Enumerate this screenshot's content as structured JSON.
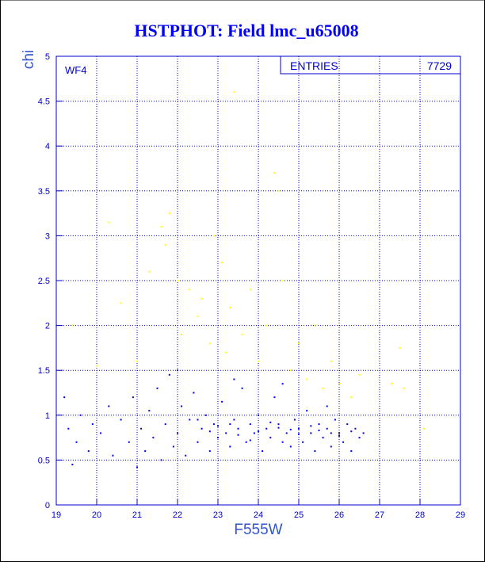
{
  "chart_data": {
    "type": "scatter",
    "title": "HSTPHOT: Field lmc_u65008",
    "x_label": "F555W",
    "y_label": "chi",
    "annotation": "WF4",
    "stats": {
      "label": "ENTRIES",
      "value": 7729
    },
    "xlim": [
      19,
      29
    ],
    "ylim": [
      0,
      5
    ],
    "xticks": [
      19,
      20,
      21,
      22,
      23,
      24,
      25,
      26,
      27,
      28,
      29
    ],
    "yticks": [
      0,
      0.5,
      1,
      1.5,
      2,
      2.5,
      3,
      3.5,
      4,
      4.5,
      5
    ],
    "grid": true,
    "series": [
      {
        "color": "#0000ff",
        "x": [
          19.3,
          19.5,
          19.6,
          19.8,
          19.4,
          19.9,
          20.1,
          20.3,
          20.4,
          20.6,
          20.8,
          20.9,
          21.1,
          21.2,
          21.3,
          21.4,
          21.5,
          21.6,
          21.7,
          21.8,
          21.9,
          22.0,
          22.1,
          22.2,
          22.3,
          22.4,
          22.5,
          22.6,
          22.7,
          22.8,
          22.9,
          23.0,
          23.1,
          23.2,
          23.3,
          23.4,
          23.5,
          23.6,
          23.7,
          23.8,
          23.9,
          24.0,
          24.1,
          24.2,
          24.3,
          24.4,
          24.5,
          24.6,
          24.7,
          24.8,
          24.9,
          25.0,
          25.1,
          25.2,
          25.3,
          25.4,
          25.5,
          25.6,
          25.7,
          25.8,
          25.9,
          26.0,
          26.1,
          26.2,
          26.3,
          26.4,
          26.5,
          26.6,
          22.5,
          23.0,
          23.5,
          24.0,
          24.5,
          25.0,
          25.5,
          26.0,
          22.8,
          23.3,
          23.8,
          24.3,
          24.8,
          25.3,
          25.8,
          26.3,
          21.0,
          19.2,
          22.0,
          23.4,
          24.6,
          25.7
        ],
        "values": [
          0.85,
          0.7,
          1.0,
          0.6,
          0.45,
          0.9,
          0.8,
          1.1,
          0.55,
          0.95,
          0.7,
          1.2,
          0.85,
          0.6,
          1.05,
          0.75,
          1.3,
          0.5,
          0.9,
          1.45,
          0.65,
          0.8,
          1.1,
          0.55,
          0.95,
          1.25,
          0.7,
          0.85,
          1.0,
          0.6,
          0.9,
          0.75,
          1.15,
          0.8,
          0.65,
          0.95,
          0.85,
          1.3,
          0.7,
          0.9,
          0.8,
          1.0,
          0.6,
          0.85,
          0.75,
          1.2,
          0.9,
          0.7,
          0.8,
          0.65,
          0.95,
          0.85,
          0.7,
          1.05,
          0.8,
          0.6,
          0.9,
          0.75,
          0.85,
          0.65,
          0.95,
          0.8,
          0.7,
          0.9,
          0.6,
          0.85,
          0.75,
          0.8,
          0.95,
          0.88,
          0.78,
          0.82,
          0.86,
          0.79,
          0.83,
          0.77,
          0.82,
          0.9,
          0.72,
          0.92,
          0.84,
          0.88,
          0.8,
          0.82,
          0.42,
          1.2,
          1.5,
          1.4,
          1.35,
          1.1
        ]
      },
      {
        "color": "#ffff00",
        "x": [
          19.4,
          20.3,
          20.6,
          21.3,
          21.6,
          21.7,
          21.8,
          22.0,
          22.1,
          22.3,
          22.5,
          22.6,
          22.8,
          22.9,
          23.1,
          23.2,
          23.3,
          23.4,
          23.6,
          23.8,
          24.0,
          24.2,
          24.4,
          24.5,
          24.6,
          24.8,
          25.0,
          25.2,
          25.4,
          25.6,
          25.8,
          26.0,
          26.3,
          27.3,
          27.5,
          27.6,
          28.1,
          26.5,
          21.0,
          20.0
        ],
        "values": [
          2.0,
          3.15,
          2.25,
          2.6,
          3.1,
          2.9,
          3.25,
          2.5,
          1.9,
          2.4,
          2.1,
          2.3,
          1.8,
          3.0,
          2.7,
          1.7,
          2.2,
          4.6,
          1.9,
          2.4,
          1.6,
          2.0,
          3.7,
          3.5,
          2.5,
          1.5,
          1.8,
          1.4,
          2.0,
          1.3,
          1.6,
          1.35,
          1.2,
          1.35,
          1.75,
          1.3,
          0.85,
          1.45,
          1.6,
          1.55
        ]
      }
    ]
  }
}
